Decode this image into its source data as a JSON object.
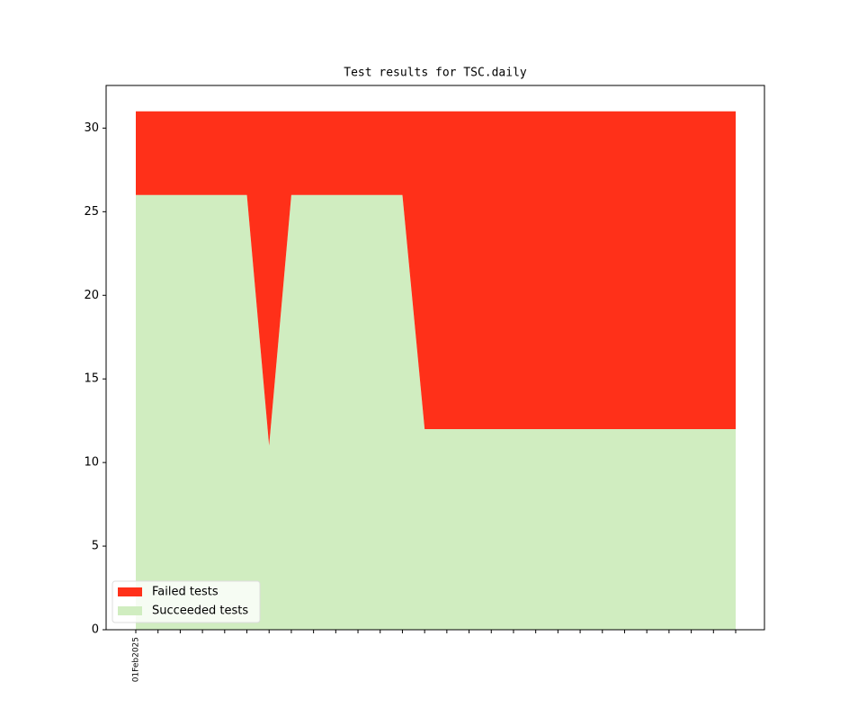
{
  "chart_data": {
    "type": "stacked-area",
    "title": "Test results for TSC.daily",
    "categories": [
      "01Feb2025",
      null,
      null,
      null,
      null,
      null,
      null,
      null,
      null,
      null,
      null,
      null,
      null,
      null,
      null,
      null,
      null,
      null,
      null,
      null,
      null,
      null,
      null,
      null,
      null,
      null,
      null,
      null
    ],
    "series": [
      {
        "name": "Failed tests",
        "color": "#ff3019",
        "values": [
          5,
          5,
          5,
          5,
          5,
          5,
          20,
          5,
          5,
          5,
          5,
          5,
          5,
          19,
          19,
          19,
          19,
          19,
          19,
          19,
          19,
          19,
          19,
          19,
          19,
          19,
          19,
          19
        ]
      },
      {
        "name": "Succeeded tests",
        "color": "#d0edc0",
        "values": [
          26,
          26,
          26,
          26,
          26,
          26,
          11,
          26,
          26,
          26,
          26,
          26,
          26,
          12,
          12,
          12,
          12,
          12,
          12,
          12,
          12,
          12,
          12,
          12,
          12,
          12,
          12,
          12
        ]
      }
    ],
    "ylim": [
      0,
      32.55
    ],
    "yticks": [
      0,
      5,
      10,
      15,
      20,
      25,
      30
    ],
    "legend": "lower left"
  }
}
